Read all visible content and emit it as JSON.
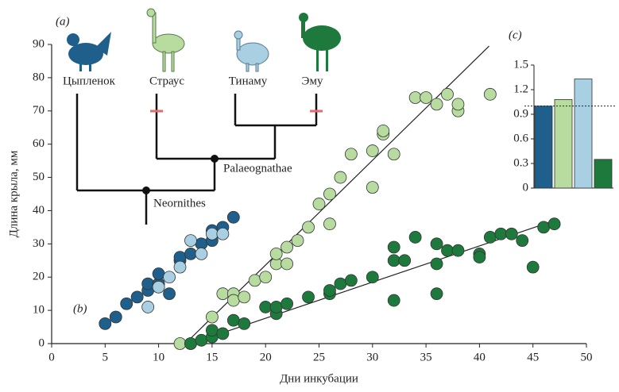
{
  "chart_data": [
    {
      "type": "scatter",
      "xlabel": "Дни инкубации",
      "ylabel": "Длина крыла, мм",
      "xlim": [
        0,
        50
      ],
      "ylim": [
        0,
        90
      ],
      "xticks": [
        0,
        5,
        10,
        15,
        20,
        25,
        30,
        35,
        40,
        45,
        50
      ],
      "yticks": [
        0,
        10,
        20,
        30,
        40,
        50,
        60,
        70,
        80,
        90
      ],
      "series": [
        {
          "color": "#1f5f8b",
          "x": [
            5,
            6,
            7,
            8,
            9,
            9,
            10,
            10,
            11,
            12,
            12,
            13,
            14,
            15,
            15,
            16,
            17
          ],
          "values": [
            6,
            8,
            12,
            14,
            16,
            18,
            18,
            21,
            15,
            25,
            26,
            27,
            30,
            31,
            34,
            35,
            38
          ]
        },
        {
          "color": "#a9cfe2",
          "x": [
            9,
            10,
            11,
            12,
            13,
            14,
            15,
            16
          ],
          "values": [
            11,
            17,
            20,
            23,
            31,
            27,
            33,
            33
          ]
        },
        {
          "color": "#b8dca0",
          "x": [
            12,
            13,
            15,
            16,
            17,
            17,
            18,
            19,
            20,
            21,
            21,
            22,
            22,
            23,
            24,
            25,
            26,
            26,
            27,
            28,
            30,
            30,
            31,
            31,
            32,
            34,
            35,
            36,
            37,
            38,
            38,
            41
          ],
          "values": [
            0,
            0,
            8,
            15,
            15,
            13,
            14,
            19,
            20,
            24,
            27,
            24,
            29,
            31,
            35,
            42,
            45,
            36,
            50,
            57,
            58,
            47,
            63,
            64,
            57,
            74,
            74,
            72,
            75,
            70,
            72,
            75
          ]
        },
        {
          "color": "#1d7a3c",
          "x": [
            13,
            14,
            15,
            15,
            16,
            17,
            18,
            20,
            21,
            21,
            22,
            24,
            26,
            26,
            27,
            28,
            30,
            32,
            32,
            32,
            33,
            34,
            36,
            36,
            36,
            37,
            38,
            40,
            40,
            41,
            42,
            43,
            44,
            45,
            46,
            47
          ],
          "values": [
            0,
            1,
            2,
            4,
            3,
            7,
            6,
            11,
            9,
            11,
            12,
            14,
            15,
            16,
            18,
            19,
            20,
            13,
            25,
            29,
            25,
            32,
            30,
            24,
            15,
            28,
            28,
            27,
            26,
            32,
            33,
            33,
            31,
            23,
            35,
            36
          ]
        }
      ],
      "trend_lines": [
        {
          "x": [
            12.5,
            40.9
          ],
          "values": [
            0,
            89.5
          ]
        },
        {
          "x": [
            13,
            47
          ],
          "values": [
            0,
            37
          ]
        }
      ]
    },
    {
      "type": "bar",
      "label": "(c)",
      "categories": [
        null,
        null,
        null,
        null
      ],
      "values": [
        1.0,
        1.08,
        1.33,
        0.35
      ],
      "colors": [
        "#1f5f8b",
        "#b8dca0",
        "#a9cfe2",
        "#1d7a3c"
      ],
      "ylim": [
        0,
        1.5
      ],
      "yticks": [
        0,
        0.3,
        0.6,
        0.9,
        1.2,
        1.5
      ],
      "reference_line": 1.0
    }
  ],
  "annotations": {
    "panel_a": "(a)",
    "panel_b": "(b)",
    "taxa": [
      "Цыпленок",
      "Страус",
      "Тинаму",
      "Эму"
    ],
    "clades": [
      "Palaeognathae",
      "Neornithes"
    ]
  }
}
